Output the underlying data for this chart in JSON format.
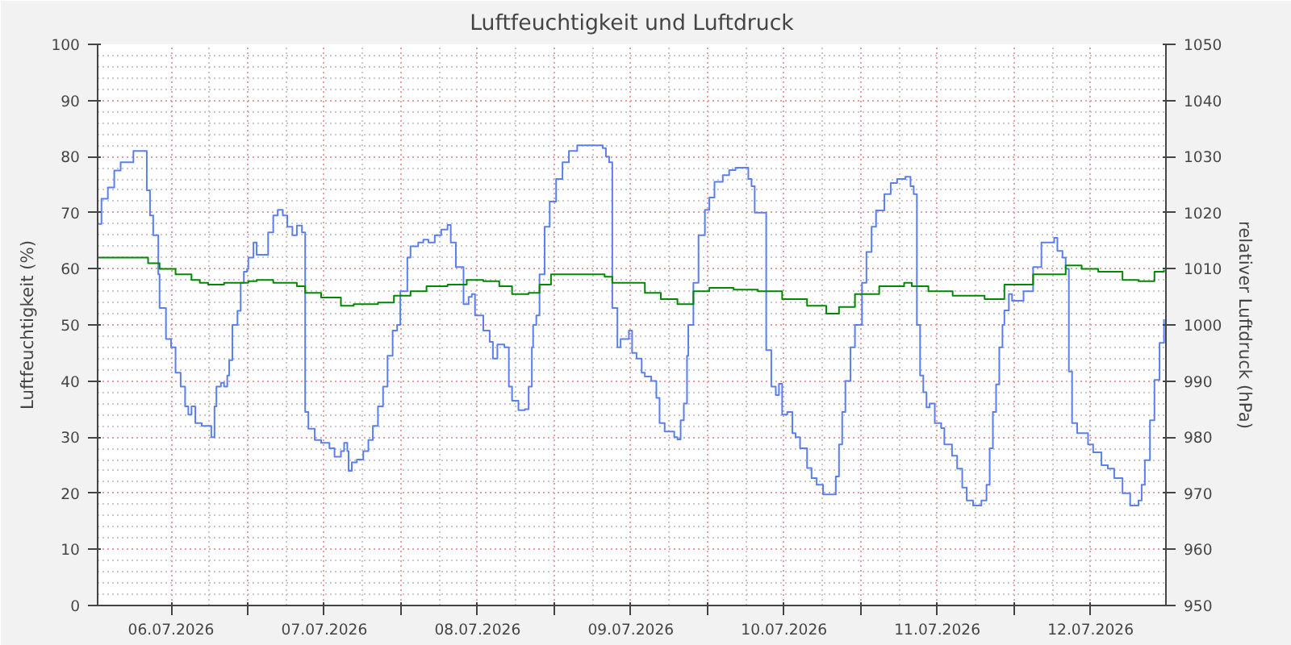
{
  "chart_data": {
    "type": "step",
    "title": "Luftfeuchtigkeit und Luftdruck",
    "ylabel": "Luftfeuchtigkeit (%)",
    "y2label": "relativer Luftdruck (hPa)",
    "xlim": [
      "2026-07-06T00:30",
      "2026-07-12T23:48"
    ],
    "xticks": [
      {
        "value": "2026-07-06T12:00",
        "label": "06.07.2026"
      },
      {
        "value": "2026-07-07T00:00",
        "label": null
      },
      {
        "value": "2026-07-07T12:00",
        "label": "07.07.2026"
      },
      {
        "value": "2026-07-08T00:00",
        "label": null
      },
      {
        "value": "2026-07-08T12:00",
        "label": "08.07.2026"
      },
      {
        "value": "2026-07-09T00:00",
        "label": null
      },
      {
        "value": "2026-07-09T12:00",
        "label": "09.07.2026"
      },
      {
        "value": "2026-07-10T00:00",
        "label": null
      },
      {
        "value": "2026-07-10T12:00",
        "label": "10.07.2026"
      },
      {
        "value": "2026-07-11T00:00",
        "label": null
      },
      {
        "value": "2026-07-11T12:00",
        "label": "11.07.2026"
      },
      {
        "value": "2026-07-12T00:00",
        "label": null
      },
      {
        "value": "2026-07-12T12:00",
        "label": "12.07.2026"
      }
    ],
    "ylim": [
      0,
      100
    ],
    "yticks": [
      0,
      10,
      20,
      30,
      40,
      50,
      60,
      70,
      80,
      90,
      100
    ],
    "y2lim": [
      950,
      1050
    ],
    "y2ticks": [
      950,
      960,
      970,
      980,
      990,
      1000,
      1010,
      1020,
      1030,
      1040,
      1050
    ],
    "grid": true,
    "series": [
      {
        "color": "#5b7ff0",
        "x": [
          "2026-07-06T00:36",
          "2026-07-06T01:06",
          "2026-07-06T02:06",
          "2026-07-06T03:06",
          "2026-07-06T04:06",
          "2026-07-06T05:36",
          "2026-07-06T06:06",
          "2026-07-06T07:42",
          "2026-07-06T08:12",
          "2026-07-06T08:42",
          "2026-07-06T09:12",
          "2026-07-06T10:00",
          "2026-07-06T10:12",
          "2026-07-06T11:12",
          "2026-07-06T12:00",
          "2026-07-06T12:42",
          "2026-07-06T13:30",
          "2026-07-06T14:12",
          "2026-07-06T14:42",
          "2026-07-06T15:12",
          "2026-07-06T15:48",
          "2026-07-06T16:48",
          "2026-07-06T18:18",
          "2026-07-06T18:48",
          "2026-07-06T19:06",
          "2026-07-06T19:48",
          "2026-07-06T20:18",
          "2026-07-06T20:48",
          "2026-07-06T21:06",
          "2026-07-06T21:36",
          "2026-07-06T22:24",
          "2026-07-06T22:54",
          "2026-07-06T23:24",
          "2026-07-06T23:54",
          "2026-07-07T00:06",
          "2026-07-07T00:54",
          "2026-07-07T01:24",
          "2026-07-07T02:42",
          "2026-07-07T03:12",
          "2026-07-07T04:00",
          "2026-07-07T04:42",
          "2026-07-07T05:30",
          "2026-07-07T06:12",
          "2026-07-07T07:00",
          "2026-07-07T07:42",
          "2026-07-07T08:30",
          "2026-07-07T09:00",
          "2026-07-07T09:30",
          "2026-07-07T10:30",
          "2026-07-07T11:30",
          "2026-07-07T12:48",
          "2026-07-07T13:36",
          "2026-07-07T14:36",
          "2026-07-07T15:06",
          "2026-07-07T15:36",
          "2026-07-07T15:48",
          "2026-07-07T16:18",
          "2026-07-07T17:06",
          "2026-07-07T18:06",
          "2026-07-07T18:54",
          "2026-07-07T19:36",
          "2026-07-07T20:24",
          "2026-07-07T21:12",
          "2026-07-07T21:54",
          "2026-07-07T22:42",
          "2026-07-07T23:24",
          "2026-07-07T23:54",
          "2026-07-08T01:00",
          "2026-07-08T01:30",
          "2026-07-08T02:42",
          "2026-07-08T03:30",
          "2026-07-08T04:18",
          "2026-07-08T05:18",
          "2026-07-08T06:18",
          "2026-07-08T07:18",
          "2026-07-08T07:48",
          "2026-07-08T08:36",
          "2026-07-08T09:48",
          "2026-07-08T10:36",
          "2026-07-08T11:06",
          "2026-07-08T11:36",
          "2026-07-08T12:54",
          "2026-07-08T13:54",
          "2026-07-08T14:24",
          "2026-07-08T15:06",
          "2026-07-08T16:12",
          "2026-07-08T16:54",
          "2026-07-08T17:24",
          "2026-07-08T18:24",
          "2026-07-08T19:24",
          "2026-07-08T20:00",
          "2026-07-08T20:30",
          "2026-07-08T20:42",
          "2026-07-08T21:12",
          "2026-07-08T21:42",
          "2026-07-08T22:30",
          "2026-07-08T23:18",
          "2026-07-09T00:18",
          "2026-07-09T01:18",
          "2026-07-09T02:18",
          "2026-07-09T03:36",
          "2026-07-09T06:36",
          "2026-07-09T07:36",
          "2026-07-09T08:06",
          "2026-07-09T08:36",
          "2026-07-09T09:06",
          "2026-07-09T09:54",
          "2026-07-09T10:24",
          "2026-07-09T10:54",
          "2026-07-09T11:42",
          "2026-07-09T12:12",
          "2026-07-09T12:54",
          "2026-07-09T13:42",
          "2026-07-09T14:12",
          "2026-07-09T15:12",
          "2026-07-09T16:00",
          "2026-07-09T16:30",
          "2026-07-09T17:18",
          "2026-07-09T18:48",
          "2026-07-09T19:18",
          "2026-07-09T19:48",
          "2026-07-09T20:18",
          "2026-07-09T20:48",
          "2026-07-09T21:00",
          "2026-07-09T21:48",
          "2026-07-09T22:36",
          "2026-07-09T23:36",
          "2026-07-10T00:18",
          "2026-07-10T01:06",
          "2026-07-10T02:24",
          "2026-07-10T03:24",
          "2026-07-10T04:24",
          "2026-07-10T05:54",
          "2026-07-10T06:24",
          "2026-07-10T06:54",
          "2026-07-10T07:24",
          "2026-07-10T09:12",
          "2026-07-10T10:00",
          "2026-07-10T10:42",
          "2026-07-10T11:12",
          "2026-07-10T11:42",
          "2026-07-10T12:30",
          "2026-07-10T13:18",
          "2026-07-10T13:48",
          "2026-07-10T14:30",
          "2026-07-10T15:36",
          "2026-07-10T16:18",
          "2026-07-10T17:06",
          "2026-07-10T18:06",
          "2026-07-10T19:36",
          "2026-07-10T20:06",
          "2026-07-10T20:36",
          "2026-07-10T21:06",
          "2026-07-10T21:36",
          "2026-07-10T22:24",
          "2026-07-10T23:06",
          "2026-07-11T00:12",
          "2026-07-11T00:54",
          "2026-07-11T01:42",
          "2026-07-11T02:24",
          "2026-07-11T03:42",
          "2026-07-11T04:42",
          "2026-07-11T05:42",
          "2026-07-11T07:00",
          "2026-07-11T07:48",
          "2026-07-11T08:18",
          "2026-07-11T08:48",
          "2026-07-11T09:18",
          "2026-07-11T09:48",
          "2026-07-11T10:18",
          "2026-07-11T10:48",
          "2026-07-11T11:36",
          "2026-07-11T12:36",
          "2026-07-11T13:06",
          "2026-07-11T13:48",
          "2026-07-11T14:18",
          "2026-07-11T15:06",
          "2026-07-11T15:54",
          "2026-07-11T16:36",
          "2026-07-11T17:36",
          "2026-07-11T18:54",
          "2026-07-11T19:42",
          "2026-07-11T20:12",
          "2026-07-11T20:42",
          "2026-07-11T21:12",
          "2026-07-11T21:42",
          "2026-07-11T22:12",
          "2026-07-11T22:30",
          "2026-07-11T23:12",
          "2026-07-11T23:42",
          "2026-07-12T01:00",
          "2026-07-12T01:30",
          "2026-07-12T03:00",
          "2026-07-12T04:18",
          "2026-07-12T06:18",
          "2026-07-12T06:48",
          "2026-07-12T07:36",
          "2026-07-12T08:06",
          "2026-07-12T08:36",
          "2026-07-12T09:06",
          "2026-07-12T09:54",
          "2026-07-12T10:36",
          "2026-07-12T11:36",
          "2026-07-12T12:24",
          "2026-07-12T13:42",
          "2026-07-12T14:42",
          "2026-07-12T15:42",
          "2026-07-12T17:00",
          "2026-07-12T18:12",
          "2026-07-12T19:30",
          "2026-07-12T20:00",
          "2026-07-12T20:30",
          "2026-07-12T21:18",
          "2026-07-12T22:00",
          "2026-07-12T22:48",
          "2026-07-12T23:30"
        ],
        "values": [
          68,
          72.5,
          74.5,
          77.5,
          79,
          79,
          81,
          81,
          74,
          69.5,
          66,
          59,
          53,
          47.5,
          46,
          41.5,
          39,
          35.5,
          34,
          35.5,
          32.5,
          32,
          30,
          35.5,
          39,
          39.7,
          39,
          41,
          43.7,
          50,
          52.5,
          57.5,
          59.5,
          60,
          62,
          64.7,
          62.5,
          62.5,
          66.5,
          69.5,
          70.5,
          69.5,
          67.5,
          66,
          67.7,
          66.5,
          34.5,
          31.5,
          29.5,
          29,
          28,
          26.5,
          27.5,
          29,
          27.5,
          24,
          25.5,
          26,
          27.5,
          29.5,
          32,
          35.5,
          39,
          44.5,
          49,
          50,
          56,
          62,
          64,
          64.7,
          65.2,
          64.7,
          66,
          67,
          67.8,
          64.7,
          60.3,
          53.7,
          55,
          55.5,
          51.7,
          49,
          47,
          44,
          46.5,
          46,
          39,
          36.5,
          34.8,
          35,
          39,
          46,
          50,
          51.7,
          59,
          67.5,
          72,
          76,
          79,
          81,
          82,
          82,
          81.5,
          80,
          79,
          53,
          46,
          47.5,
          47.5,
          49,
          45,
          44,
          41.5,
          40.8,
          40,
          37,
          32.5,
          31,
          30,
          29.6,
          33,
          36,
          44.5,
          50,
          57.5,
          66,
          70.5,
          72.7,
          75.5,
          76.7,
          77.6,
          78,
          78,
          76,
          74.7,
          70,
          45.5,
          39,
          37.5,
          39.5,
          34,
          34.5,
          30.7,
          30,
          28,
          24.5,
          22.7,
          21.5,
          19.8,
          19.8,
          23,
          28.7,
          34.5,
          40,
          46,
          50,
          57.5,
          63,
          67.5,
          70.4,
          73.3,
          75.3,
          76,
          76.4,
          74.7,
          73.3,
          50,
          41,
          38,
          35.3,
          36,
          32.5,
          31.6,
          28.7,
          28.7,
          26.7,
          24.4,
          21,
          18.7,
          17.8,
          18.7,
          21.5,
          28,
          34.5,
          39.4,
          46,
          50,
          52.6,
          55.5,
          54.3,
          54.3,
          56,
          60.3,
          64.7,
          65.5,
          63.2,
          62,
          60,
          41.7,
          32.5,
          30.7,
          30.7,
          28.7,
          27.3,
          25,
          24.4,
          22.7,
          20,
          17.8,
          18.7,
          21.5,
          25.9,
          33,
          40.2,
          46.8,
          51
        ]
      },
      {
        "color": "#008800",
        "axis": "y2",
        "x": [
          "2026-07-06T00:36",
          "2026-07-06T06:06",
          "2026-07-06T08:24",
          "2026-07-06T10:12",
          "2026-07-06T12:42",
          "2026-07-06T15:12",
          "2026-07-06T16:30",
          "2026-07-06T17:48",
          "2026-07-06T20:18",
          "2026-07-07T00:06",
          "2026-07-07T01:24",
          "2026-07-07T04:00",
          "2026-07-07T07:42",
          "2026-07-07T09:00",
          "2026-07-07T11:30",
          "2026-07-07T14:36",
          "2026-07-07T16:36",
          "2026-07-07T20:24",
          "2026-07-07T22:54",
          "2026-07-08T01:30",
          "2026-07-08T04:00",
          "2026-07-08T07:18",
          "2026-07-08T10:18",
          "2026-07-08T12:54",
          "2026-07-08T15:24",
          "2026-07-08T17:24",
          "2026-07-08T20:00",
          "2026-07-08T21:42",
          "2026-07-08T23:30",
          "2026-07-09T02:48",
          "2026-07-09T07:54",
          "2026-07-09T09:06",
          "2026-07-09T14:12",
          "2026-07-09T16:42",
          "2026-07-09T19:18",
          "2026-07-09T21:48",
          "2026-07-10T00:18",
          "2026-07-10T04:06",
          "2026-07-10T07:54",
          "2026-07-10T11:42",
          "2026-07-10T15:36",
          "2026-07-10T18:36",
          "2026-07-10T20:36",
          "2026-07-10T23:06",
          "2026-07-11T02:54",
          "2026-07-11T06:48",
          "2026-07-11T08:00",
          "2026-07-11T10:36",
          "2026-07-11T14:24",
          "2026-07-11T19:24",
          "2026-07-11T22:30",
          "2026-07-12T03:00",
          "2026-07-12T08:06",
          "2026-07-12T10:36",
          "2026-07-12T13:12",
          "2026-07-12T17:00",
          "2026-07-12T19:30",
          "2026-07-12T22:00",
          "2026-07-12T23:30"
        ],
        "values": [
          1012,
          1012,
          1011,
          1010,
          1009,
          1008,
          1007.5,
          1007.2,
          1007.5,
          1007.8,
          1008,
          1007.5,
          1006.9,
          1005.7,
          1004.9,
          1003.4,
          1003.7,
          1004,
          1005.2,
          1006,
          1006.9,
          1007.2,
          1008,
          1007.8,
          1006.9,
          1005.5,
          1005.7,
          1007.2,
          1009,
          1009,
          1008.6,
          1007.5,
          1005.7,
          1004.6,
          1003.7,
          1006,
          1006.6,
          1006.3,
          1006,
          1004.6,
          1003.4,
          1002,
          1003.2,
          1005.5,
          1006.9,
          1007.5,
          1006.9,
          1006,
          1005.2,
          1004.6,
          1007.2,
          1009,
          1010.6,
          1010,
          1009.5,
          1008,
          1007.8,
          1009.5,
          1009.8
        ]
      }
    ]
  }
}
